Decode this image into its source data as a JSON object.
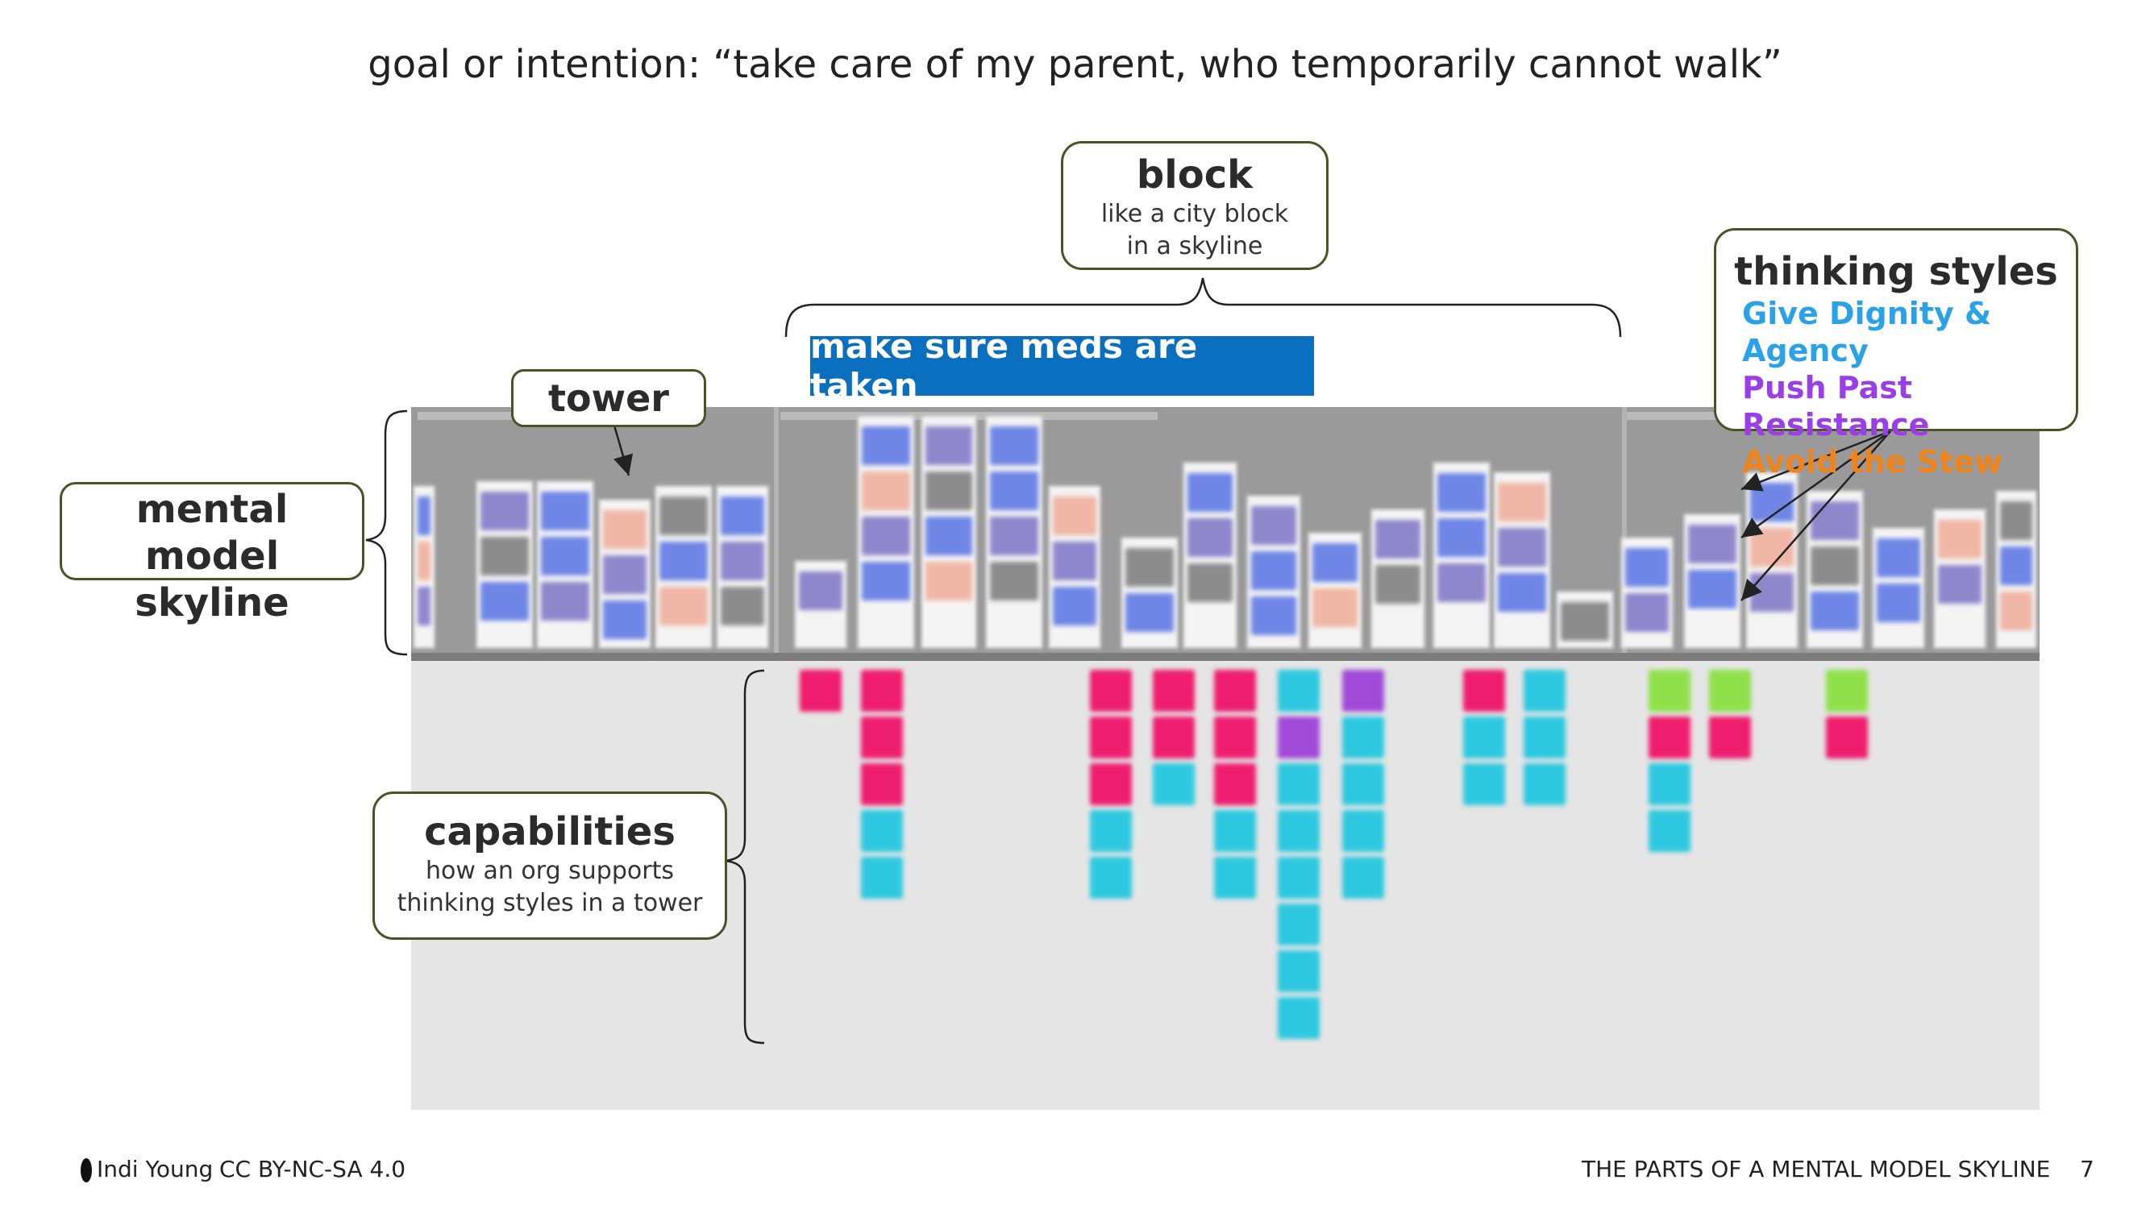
{
  "title": "goal or intention: “take care of my parent, who temporarily cannot walk”",
  "block_callout": {
    "heading": "block",
    "description": "like a city block in a skyline"
  },
  "banner": {
    "label": "make sure meds are taken",
    "color": "#0a6fbe"
  },
  "tower_callout": {
    "heading": "tower"
  },
  "skyline_callout": {
    "heading": "mental model skyline"
  },
  "capabilities_callout": {
    "heading": "capabilities",
    "description": "how an org supports thinking styles in a tower"
  },
  "thinking_styles_callout": {
    "heading": "thinking styles",
    "styles": [
      {
        "label": "Give Dignity & Agency",
        "color": "#2aa2e8"
      },
      {
        "label": "Push Past Resistance",
        "color": "#9a3fe6"
      },
      {
        "label": "Avoid the Stew",
        "color": "#f0831a"
      }
    ]
  },
  "footer": {
    "author": "Indi Young",
    "license": "CC BY-NC-SA 4.0",
    "section": "THE PARTS OF A MENTAL MODEL SKYLINE",
    "page": "7"
  },
  "colors": {
    "callout_border": "#4a5226",
    "note_blue": "#6f86e6",
    "note_purple": "#8f86cc",
    "note_salmon": "#f0b6a6",
    "note_grey": "#8c8c8c",
    "cap_pink": "#ef1d6e",
    "cap_cyan": "#2ec9e0",
    "cap_green": "#8fe04a",
    "cap_violet": "#a04ad8"
  }
}
